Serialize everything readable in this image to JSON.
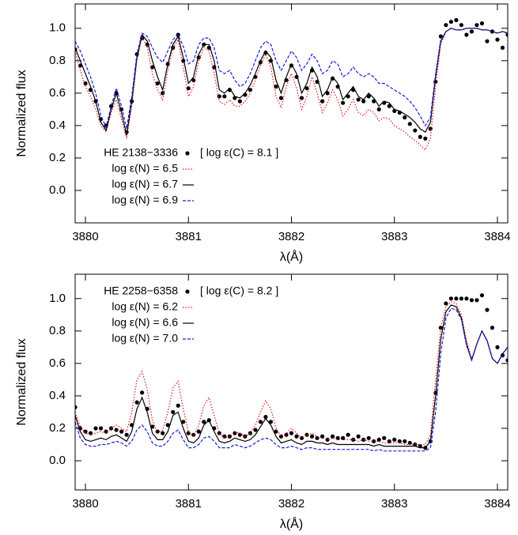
{
  "chart_data": [
    {
      "type": "line",
      "xlabel": "λ(Å)",
      "ylabel": "Normalized flux",
      "annotation": "[ log ε(C) = 8.1 ]",
      "legend": "lower left",
      "xlim": [
        3879.9,
        3884.1
      ],
      "ylim": [
        -0.2,
        1.15
      ],
      "xticks": [
        3880,
        3881,
        3882,
        3883,
        3884
      ],
      "yticks": [
        {
          "value": 0,
          "label": "0.0"
        },
        {
          "value": 0.2,
          "label": "0.2"
        },
        {
          "value": 0.4,
          "label": "0.4"
        },
        {
          "value": 0.6,
          "label": "0.6"
        },
        {
          "value": 0.8,
          "label": "0.8"
        },
        {
          "value": 1,
          "label": "1.0"
        }
      ],
      "x": [
        3879.9,
        3879.95,
        3880,
        3880.05,
        3880.1,
        3880.15,
        3880.2,
        3880.25,
        3880.3,
        3880.35,
        3880.4,
        3880.45,
        3880.5,
        3880.55,
        3880.6,
        3880.65,
        3880.7,
        3880.75,
        3880.8,
        3880.85,
        3880.9,
        3880.95,
        3881,
        3881.05,
        3881.1,
        3881.15,
        3881.2,
        3881.25,
        3881.3,
        3881.35,
        3881.4,
        3881.45,
        3881.5,
        3881.55,
        3881.6,
        3881.65,
        3881.7,
        3881.75,
        3881.8,
        3881.85,
        3881.9,
        3881.95,
        3882,
        3882.05,
        3882.1,
        3882.15,
        3882.2,
        3882.25,
        3882.3,
        3882.35,
        3882.4,
        3882.45,
        3882.5,
        3882.55,
        3882.6,
        3882.65,
        3882.7,
        3882.75,
        3882.8,
        3882.85,
        3882.9,
        3882.95,
        3883,
        3883.05,
        3883.1,
        3883.15,
        3883.2,
        3883.25,
        3883.3,
        3883.35,
        3883.4,
        3883.45,
        3883.5,
        3883.55,
        3883.6,
        3883.65,
        3883.7,
        3883.75,
        3883.8,
        3883.85,
        3883.9,
        3883.95,
        3884,
        3884.05,
        3884.1
      ],
      "series": [
        {
          "name": "HE 2138−3336",
          "color": "#000000",
          "style": "points",
          "values": [
            0.87,
            0.77,
            0.66,
            0.62,
            0.55,
            0.44,
            0.4,
            0.52,
            0.6,
            0.5,
            0.36,
            0.55,
            0.84,
            0.94,
            0.9,
            0.76,
            0.66,
            0.6,
            0.78,
            0.88,
            0.96,
            0.8,
            0.63,
            0.68,
            0.82,
            0.9,
            0.88,
            0.76,
            0.58,
            0.58,
            0.62,
            0.57,
            0.55,
            0.59,
            0.62,
            0.7,
            0.79,
            0.85,
            0.8,
            0.64,
            0.57,
            0.68,
            0.77,
            0.7,
            0.57,
            0.63,
            0.74,
            0.67,
            0.55,
            0.6,
            0.69,
            0.64,
            0.54,
            0.58,
            0.62,
            0.56,
            0.55,
            0.58,
            0.55,
            0.5,
            0.54,
            0.52,
            0.49,
            0.48,
            0.45,
            0.41,
            0.37,
            0.33,
            0.32,
            0.38,
            0.67,
            0.95,
            1.02,
            1.04,
            1.05,
            1.02,
            0.96,
            0.98,
            1.02,
            1.03,
            0.92,
            0.98,
            0.93,
            0.88,
            0.96
          ]
        },
        {
          "name": "log ε(N) = 6.5",
          "color": "#e41a1c",
          "style": "dotted",
          "values": [
            0.86,
            0.74,
            0.64,
            0.58,
            0.5,
            0.4,
            0.36,
            0.48,
            0.56,
            0.44,
            0.32,
            0.52,
            0.8,
            0.95,
            0.88,
            0.72,
            0.62,
            0.56,
            0.74,
            0.88,
            0.93,
            0.76,
            0.58,
            0.64,
            0.8,
            0.88,
            0.86,
            0.72,
            0.55,
            0.53,
            0.56,
            0.52,
            0.52,
            0.55,
            0.6,
            0.68,
            0.77,
            0.84,
            0.76,
            0.58,
            0.51,
            0.64,
            0.72,
            0.63,
            0.5,
            0.58,
            0.7,
            0.6,
            0.48,
            0.54,
            0.62,
            0.56,
            0.46,
            0.5,
            0.56,
            0.48,
            0.46,
            0.5,
            0.48,
            0.43,
            0.45,
            0.44,
            0.4,
            0.38,
            0.36,
            0.33,
            0.31,
            0.28,
            0.25,
            0.32,
            0.64,
            0.9,
            0.98,
            1.0,
            0.99,
            0.99,
            1.0,
            1.0,
            1.0,
            0.99,
            0.99,
            0.98,
            0.97,
            0.98,
            0.97
          ]
        },
        {
          "name": "log ε(N) = 6.7",
          "color": "#000000",
          "style": "solid",
          "values": [
            0.88,
            0.8,
            0.72,
            0.64,
            0.55,
            0.42,
            0.37,
            0.5,
            0.6,
            0.48,
            0.34,
            0.55,
            0.82,
            0.96,
            0.92,
            0.8,
            0.7,
            0.62,
            0.78,
            0.9,
            0.95,
            0.82,
            0.66,
            0.7,
            0.84,
            0.9,
            0.9,
            0.8,
            0.62,
            0.6,
            0.63,
            0.58,
            0.57,
            0.6,
            0.65,
            0.72,
            0.8,
            0.86,
            0.82,
            0.68,
            0.6,
            0.7,
            0.78,
            0.72,
            0.6,
            0.66,
            0.76,
            0.7,
            0.58,
            0.62,
            0.7,
            0.66,
            0.56,
            0.6,
            0.64,
            0.58,
            0.56,
            0.6,
            0.57,
            0.52,
            0.55,
            0.54,
            0.5,
            0.49,
            0.47,
            0.45,
            0.42,
            0.38,
            0.36,
            0.42,
            0.7,
            0.92,
            0.98,
            1.0,
            0.99,
            0.99,
            1.0,
            1.0,
            1.0,
            0.99,
            0.99,
            0.98,
            0.97,
            0.98,
            0.97
          ]
        },
        {
          "name": "log ε(N) = 6.9",
          "color": "#1a1adc",
          "style": "dashed",
          "values": [
            0.92,
            0.86,
            0.78,
            0.7,
            0.6,
            0.46,
            0.39,
            0.52,
            0.63,
            0.52,
            0.38,
            0.58,
            0.84,
            0.97,
            0.95,
            0.88,
            0.82,
            0.79,
            0.86,
            0.93,
            0.96,
            0.89,
            0.78,
            0.8,
            0.9,
            0.94,
            0.94,
            0.88,
            0.74,
            0.72,
            0.74,
            0.68,
            0.64,
            0.66,
            0.72,
            0.8,
            0.88,
            0.92,
            0.9,
            0.8,
            0.74,
            0.8,
            0.86,
            0.82,
            0.74,
            0.78,
            0.84,
            0.8,
            0.72,
            0.74,
            0.8,
            0.78,
            0.7,
            0.72,
            0.76,
            0.72,
            0.7,
            0.72,
            0.7,
            0.66,
            0.66,
            0.64,
            0.62,
            0.6,
            0.58,
            0.55,
            0.51,
            0.46,
            0.4,
            0.45,
            0.72,
            0.93,
            0.98,
            1.0,
            0.99,
            0.99,
            1.0,
            1.0,
            1.0,
            0.99,
            0.99,
            0.98,
            0.97,
            0.98,
            0.97
          ]
        }
      ]
    },
    {
      "type": "line",
      "xlabel": "λ(Å)",
      "ylabel": "Normalized flux",
      "annotation": "[ log ε(C) = 8.2 ]",
      "legend": "upper left",
      "xlim": [
        3879.9,
        3884.1
      ],
      "ylim": [
        -0.18,
        1.15
      ],
      "xticks": [
        3880,
        3881,
        3882,
        3883,
        3884
      ],
      "yticks": [
        {
          "value": 0,
          "label": "0.0"
        },
        {
          "value": 0.2,
          "label": "0.2"
        },
        {
          "value": 0.4,
          "label": "0.4"
        },
        {
          "value": 0.6,
          "label": "0.6"
        },
        {
          "value": 0.8,
          "label": "0.8"
        },
        {
          "value": 1,
          "label": "1.0"
        }
      ],
      "x": [
        3879.9,
        3879.95,
        3880,
        3880.05,
        3880.1,
        3880.15,
        3880.2,
        3880.25,
        3880.3,
        3880.35,
        3880.4,
        3880.45,
        3880.5,
        3880.55,
        3880.6,
        3880.65,
        3880.7,
        3880.75,
        3880.8,
        3880.85,
        3880.9,
        3880.95,
        3881,
        3881.05,
        3881.1,
        3881.15,
        3881.2,
        3881.25,
        3881.3,
        3881.35,
        3881.4,
        3881.45,
        3881.5,
        3881.55,
        3881.6,
        3881.65,
        3881.7,
        3881.75,
        3881.8,
        3881.85,
        3881.9,
        3881.95,
        3882,
        3882.05,
        3882.1,
        3882.15,
        3882.2,
        3882.25,
        3882.3,
        3882.35,
        3882.4,
        3882.45,
        3882.5,
        3882.55,
        3882.6,
        3882.65,
        3882.7,
        3882.75,
        3882.8,
        3882.85,
        3882.9,
        3882.95,
        3883,
        3883.05,
        3883.1,
        3883.15,
        3883.2,
        3883.25,
        3883.3,
        3883.35,
        3883.4,
        3883.45,
        3883.5,
        3883.55,
        3883.6,
        3883.65,
        3883.7,
        3883.75,
        3883.8,
        3883.85,
        3883.9,
        3883.95,
        3884,
        3884.05,
        3884.1
      ],
      "series": [
        {
          "name": "HE 2258−6358",
          "color": "#000000",
          "style": "points",
          "values": [
            0.33,
            0.2,
            0.18,
            0.17,
            0.2,
            0.2,
            0.18,
            0.2,
            0.19,
            0.18,
            0.16,
            0.22,
            0.36,
            0.42,
            0.32,
            0.21,
            0.18,
            0.17,
            0.22,
            0.3,
            0.34,
            0.24,
            0.17,
            0.16,
            0.18,
            0.24,
            0.25,
            0.2,
            0.17,
            0.15,
            0.15,
            0.17,
            0.16,
            0.15,
            0.17,
            0.19,
            0.24,
            0.27,
            0.24,
            0.18,
            0.15,
            0.16,
            0.17,
            0.15,
            0.14,
            0.16,
            0.15,
            0.14,
            0.15,
            0.13,
            0.15,
            0.14,
            0.14,
            0.16,
            0.13,
            0.15,
            0.13,
            0.14,
            0.12,
            0.13,
            0.14,
            0.12,
            0.13,
            0.12,
            0.12,
            0.11,
            0.1,
            0.09,
            0.08,
            0.12,
            0.42,
            0.82,
            0.97,
            1.0,
            1.0,
            1.0,
            1.0,
            0.99,
            0.99,
            1.02,
            0.93,
            0.82,
            0.7,
            0.65,
            0.62
          ]
        },
        {
          "name": "log ε(N) = 6.2",
          "color": "#e41a1c",
          "style": "dotted",
          "values": [
            0.3,
            0.21,
            0.17,
            0.16,
            0.17,
            0.18,
            0.17,
            0.2,
            0.22,
            0.2,
            0.18,
            0.3,
            0.5,
            0.55,
            0.44,
            0.25,
            0.17,
            0.19,
            0.3,
            0.45,
            0.49,
            0.32,
            0.18,
            0.15,
            0.22,
            0.34,
            0.39,
            0.28,
            0.17,
            0.14,
            0.15,
            0.18,
            0.17,
            0.15,
            0.17,
            0.22,
            0.3,
            0.37,
            0.32,
            0.2,
            0.15,
            0.17,
            0.2,
            0.17,
            0.14,
            0.16,
            0.17,
            0.15,
            0.14,
            0.13,
            0.14,
            0.13,
            0.13,
            0.13,
            0.13,
            0.12,
            0.13,
            0.12,
            0.12,
            0.12,
            0.11,
            0.11,
            0.11,
            0.11,
            0.1,
            0.1,
            0.1,
            0.1,
            0.1,
            0.16,
            0.5,
            0.82,
            0.95,
            0.98,
            0.97,
            0.9,
            0.74,
            0.63,
            0.72,
            0.8,
            0.74,
            0.63,
            0.6,
            0.66,
            0.7
          ]
        },
        {
          "name": "log ε(N) = 6.6",
          "color": "#000000",
          "style": "solid",
          "values": [
            0.28,
            0.18,
            0.13,
            0.12,
            0.13,
            0.14,
            0.13,
            0.15,
            0.16,
            0.14,
            0.12,
            0.18,
            0.32,
            0.39,
            0.3,
            0.17,
            0.13,
            0.13,
            0.18,
            0.28,
            0.3,
            0.2,
            0.12,
            0.11,
            0.14,
            0.22,
            0.25,
            0.18,
            0.12,
            0.11,
            0.12,
            0.14,
            0.13,
            0.12,
            0.13,
            0.16,
            0.21,
            0.26,
            0.22,
            0.15,
            0.11,
            0.12,
            0.13,
            0.11,
            0.1,
            0.12,
            0.12,
            0.11,
            0.11,
            0.1,
            0.11,
            0.1,
            0.1,
            0.1,
            0.1,
            0.1,
            0.1,
            0.1,
            0.09,
            0.1,
            0.09,
            0.09,
            0.09,
            0.09,
            0.09,
            0.09,
            0.09,
            0.08,
            0.08,
            0.12,
            0.4,
            0.75,
            0.92,
            0.96,
            0.95,
            0.88,
            0.72,
            0.62,
            0.72,
            0.8,
            0.74,
            0.63,
            0.6,
            0.66,
            0.7
          ]
        },
        {
          "name": "log ε(N) = 7.0",
          "color": "#1a1adc",
          "style": "dashed",
          "values": [
            0.24,
            0.14,
            0.1,
            0.09,
            0.09,
            0.1,
            0.1,
            0.11,
            0.12,
            0.11,
            0.09,
            0.12,
            0.19,
            0.22,
            0.18,
            0.11,
            0.09,
            0.09,
            0.12,
            0.17,
            0.19,
            0.13,
            0.08,
            0.08,
            0.1,
            0.14,
            0.15,
            0.12,
            0.08,
            0.08,
            0.08,
            0.1,
            0.09,
            0.08,
            0.09,
            0.11,
            0.13,
            0.14,
            0.13,
            0.1,
            0.08,
            0.08,
            0.09,
            0.08,
            0.07,
            0.08,
            0.08,
            0.07,
            0.07,
            0.07,
            0.07,
            0.07,
            0.07,
            0.07,
            0.07,
            0.07,
            0.07,
            0.07,
            0.06,
            0.07,
            0.06,
            0.06,
            0.06,
            0.06,
            0.06,
            0.06,
            0.06,
            0.06,
            0.06,
            0.08,
            0.3,
            0.66,
            0.88,
            0.94,
            0.93,
            0.87,
            0.71,
            0.62,
            0.72,
            0.8,
            0.74,
            0.63,
            0.6,
            0.66,
            0.7
          ]
        }
      ]
    }
  ]
}
